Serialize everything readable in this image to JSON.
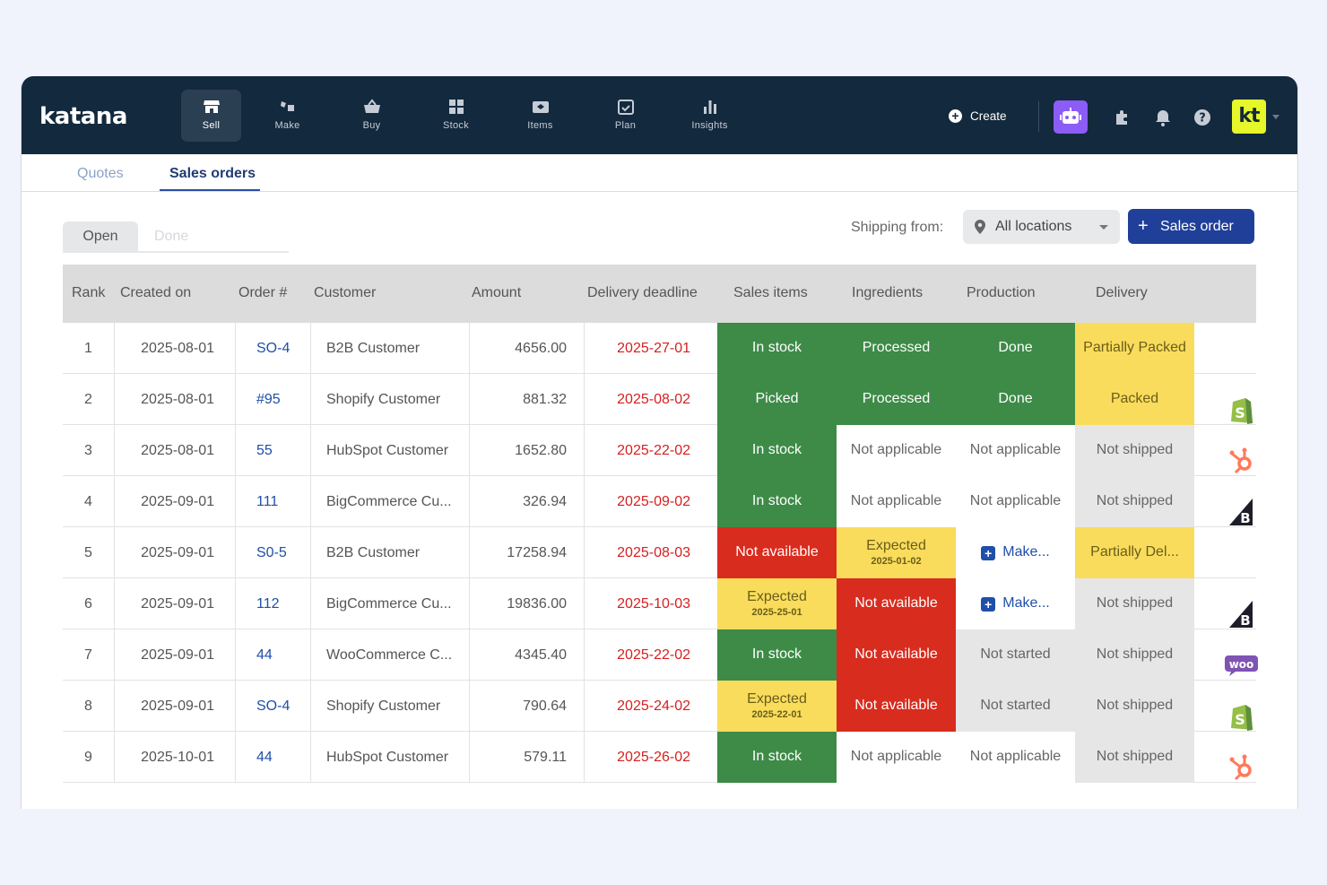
{
  "app": {
    "logo": "katana"
  },
  "nav": [
    {
      "label": "Sell",
      "icon": "store-icon",
      "active": true
    },
    {
      "label": "Make",
      "icon": "make-icon"
    },
    {
      "label": "Buy",
      "icon": "basket-icon"
    },
    {
      "label": "Stock",
      "icon": "stock-icon"
    },
    {
      "label": "Items",
      "icon": "items-icon"
    },
    {
      "label": "Plan",
      "icon": "calendar-icon"
    },
    {
      "label": "Insights",
      "icon": "bar-chart-icon"
    }
  ],
  "topbar": {
    "create_label": "Create",
    "avatar_initials": "kt"
  },
  "subtabs": {
    "quotes": "Quotes",
    "sales_orders": "Sales orders",
    "active": "Sales orders"
  },
  "filters": {
    "open_label": "Open",
    "done_label": "Done",
    "shipping_from_label": "Shipping from:",
    "location_value": "All locations",
    "new_order_label": "Sales order"
  },
  "table": {
    "columns": [
      "Rank",
      "Created on",
      "Order #",
      "Customer",
      "Amount",
      "Delivery deadline",
      "Sales items",
      "Ingredients",
      "Production",
      "Delivery"
    ],
    "rows": [
      {
        "rank": "1",
        "created": "2025-08-01",
        "order": "SO-4",
        "customer": "B2B Customer",
        "amount": "4656.00",
        "deadline": "2025-27-01",
        "sales_items": {
          "text": "In stock",
          "color": "green"
        },
        "ingredients": {
          "text": "Processed",
          "color": "green"
        },
        "production": {
          "text": "Done",
          "color": "green"
        },
        "delivery": {
          "text": "Partially Packed",
          "color": "yellow"
        },
        "channel": ""
      },
      {
        "rank": "2",
        "created": "2025-08-01",
        "order": "#95",
        "customer": "Shopify Customer",
        "amount": "881.32",
        "deadline": "2025-08-02",
        "sales_items": {
          "text": "Picked",
          "color": "green"
        },
        "ingredients": {
          "text": "Processed",
          "color": "green"
        },
        "production": {
          "text": "Done",
          "color": "green"
        },
        "delivery": {
          "text": "Packed",
          "color": "yellow"
        },
        "channel": "shopify-icon"
      },
      {
        "rank": "3",
        "created": "2025-08-01",
        "order": "55",
        "customer": "HubSpot Customer",
        "amount": "1652.80",
        "deadline": "2025-22-02",
        "sales_items": {
          "text": "In stock",
          "color": "green"
        },
        "ingredients": {
          "text": "Not applicable",
          "color": "white"
        },
        "production": {
          "text": "Not applicable",
          "color": "white"
        },
        "delivery": {
          "text": "Not shipped",
          "color": "gray"
        },
        "channel": "hubspot-icon"
      },
      {
        "rank": "4",
        "created": "2025-09-01",
        "order": "111",
        "customer": "BigCommerce Cu...",
        "amount": "326.94",
        "deadline": "2025-09-02",
        "sales_items": {
          "text": "In stock",
          "color": "green"
        },
        "ingredients": {
          "text": "Not applicable",
          "color": "white"
        },
        "production": {
          "text": "Not applicable",
          "color": "white"
        },
        "delivery": {
          "text": "Not shipped",
          "color": "gray"
        },
        "channel": "bigcommerce-icon"
      },
      {
        "rank": "5",
        "created": "2025-09-01",
        "order": "S0-5",
        "customer": "B2B Customer",
        "amount": "17258.94",
        "deadline": "2025-08-03",
        "sales_items": {
          "text": "Not available",
          "color": "red"
        },
        "ingredients": {
          "text": "Expected",
          "sub": "2025-01-02",
          "color": "yellow"
        },
        "production": {
          "text": "Make...",
          "color": "make"
        },
        "delivery": {
          "text": "Partially Del...",
          "color": "yellow"
        },
        "channel": ""
      },
      {
        "rank": "6",
        "created": "2025-09-01",
        "order": "112",
        "customer": "BigCommerce Cu...",
        "amount": "19836.00",
        "deadline": "2025-10-03",
        "sales_items": {
          "text": "Expected",
          "sub": "2025-25-01",
          "color": "yellow"
        },
        "ingredients": {
          "text": "Not available",
          "color": "red"
        },
        "production": {
          "text": "Make...",
          "color": "make"
        },
        "delivery": {
          "text": "Not shipped",
          "color": "gray"
        },
        "channel": "bigcommerce-icon"
      },
      {
        "rank": "7",
        "created": "2025-09-01",
        "order": "44",
        "customer": "WooCommerce C...",
        "amount": "4345.40",
        "deadline": "2025-22-02",
        "sales_items": {
          "text": "In stock",
          "color": "green"
        },
        "ingredients": {
          "text": "Not available",
          "color": "red"
        },
        "production": {
          "text": "Not started",
          "color": "gray"
        },
        "delivery": {
          "text": "Not shipped",
          "color": "gray"
        },
        "channel": "woocommerce-icon"
      },
      {
        "rank": "8",
        "created": "2025-09-01",
        "order": "SO-4",
        "customer": "Shopify Customer",
        "amount": "790.64",
        "deadline": "2025-24-02",
        "sales_items": {
          "text": "Expected",
          "sub": "2025-22-01",
          "color": "yellow"
        },
        "ingredients": {
          "text": "Not available",
          "color": "red"
        },
        "production": {
          "text": "Not started",
          "color": "gray"
        },
        "delivery": {
          "text": "Not shipped",
          "color": "gray"
        },
        "channel": "shopify-icon"
      },
      {
        "rank": "9",
        "created": "2025-10-01",
        "order": "44",
        "customer": "HubSpot Customer",
        "amount": "579.11",
        "deadline": "2025-26-02",
        "sales_items": {
          "text": "In stock",
          "color": "green"
        },
        "ingredients": {
          "text": "Not applicable",
          "color": "white"
        },
        "production": {
          "text": "Not applicable",
          "color": "white"
        },
        "delivery": {
          "text": "Not shipped",
          "color": "gray"
        },
        "channel": "hubspot-icon"
      }
    ]
  },
  "colors": {
    "nav_bg": "#13293d",
    "primary": "#1f3f99",
    "status_green": "#3d8b47",
    "status_red": "#d82c1e",
    "status_yellow": "#f9dc5c",
    "status_gray": "#e6e6e6",
    "deadline_text": "#d61f1f",
    "avatar_bg": "#e6f72a",
    "assistant_bg": "#8b5cf6"
  }
}
